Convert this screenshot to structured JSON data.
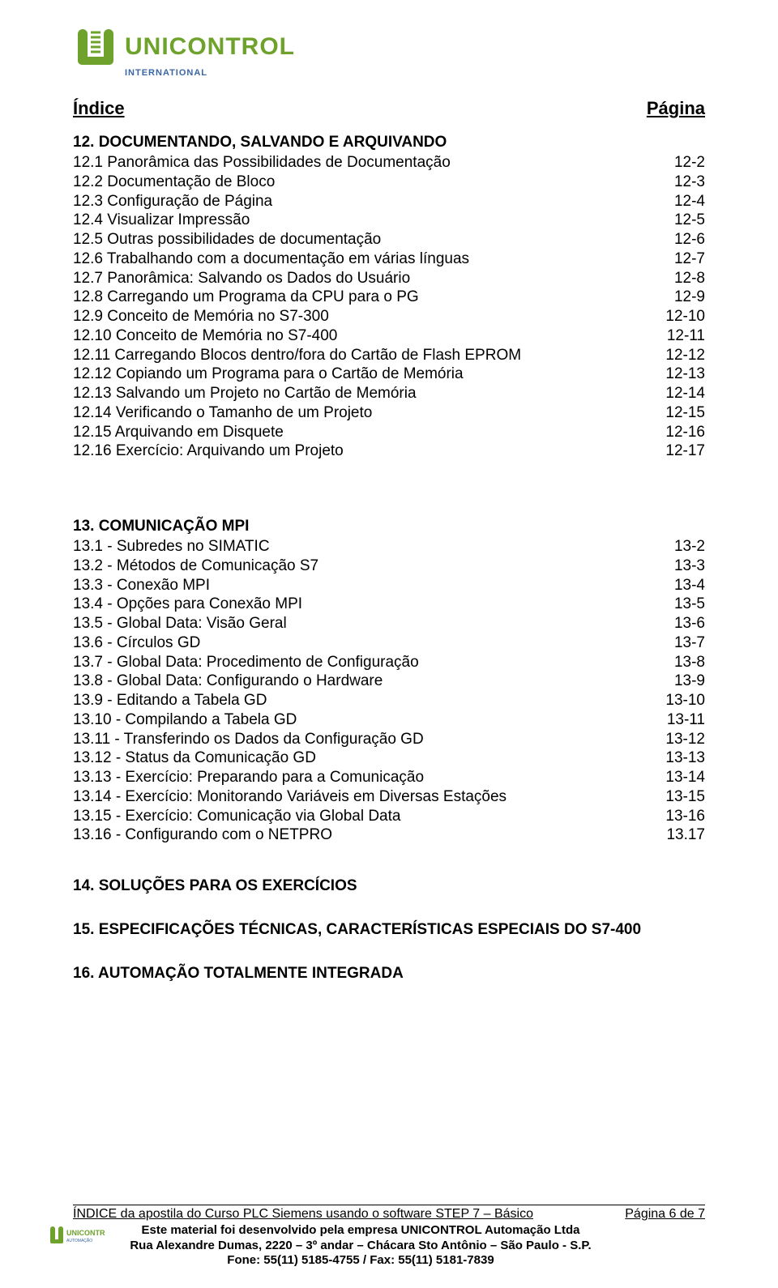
{
  "logo": {
    "brand": "UNICONTROL",
    "subtitle": "INTERNATIONAL",
    "brand_color": "#6ea22c",
    "sub_color": "#3a66a6"
  },
  "header": {
    "left": "Índice",
    "right": "Página"
  },
  "sections": [
    {
      "title": "12. DOCUMENTANDO, SALVANDO E ARQUIVANDO",
      "items": [
        {
          "label": "12.1 Panorâmica das Possibilidades de Documentação",
          "page": "12-2"
        },
        {
          "label": "12.2 Documentação de Bloco",
          "page": "12-3"
        },
        {
          "label": "12.3 Configuração de Página",
          "page": "12-4"
        },
        {
          "label": "12.4 Visualizar Impressão",
          "page": "12-5"
        },
        {
          "label": "12.5 Outras possibilidades de documentação",
          "page": "12-6"
        },
        {
          "label": "12.6 Trabalhando com a documentação em várias línguas",
          "page": "12-7"
        },
        {
          "label": "12.7 Panorâmica: Salvando os Dados do Usuário",
          "page": "12-8"
        },
        {
          "label": "12.8 Carregando um Programa da CPU para o PG",
          "page": "12-9"
        },
        {
          "label": "12.9 Conceito de Memória no S7-300",
          "page": "12-10"
        },
        {
          "label": "12.10 Conceito de Memória no S7-400",
          "page": "12-11"
        },
        {
          "label": "12.11 Carregando Blocos dentro/fora do Cartão de Flash EPROM",
          "page": "12-12"
        },
        {
          "label": "12.12 Copiando um Programa para o Cartão de Memória",
          "page": "12-13"
        },
        {
          "label": "12.13 Salvando um Projeto no Cartão de Memória",
          "page": "12-14"
        },
        {
          "label": "12.14 Verificando o Tamanho de um Projeto",
          "page": "12-15"
        },
        {
          "label": "12.15 Arquivando em Disquete",
          "page": "12-16"
        },
        {
          "label": "12.16 Exercício: Arquivando um Projeto",
          "page": "12-17"
        }
      ]
    },
    {
      "title": "13. COMUNICAÇÃO MPI",
      "items": [
        {
          "label": "13.1 - Subredes no SIMATIC",
          "page": "13-2"
        },
        {
          "label": "13.2 - Métodos de Comunicação S7",
          "page": "13-3"
        },
        {
          "label": "13.3 - Conexão MPI",
          "page": "13-4"
        },
        {
          "label": "13.4 - Opções para Conexão MPI",
          "page": "13-5"
        },
        {
          "label": "13.5 - Global Data: Visão Geral",
          "page": "13-6"
        },
        {
          "label": "13.6 - Círculos GD",
          "page": "13-7"
        },
        {
          "label": "13.7 - Global Data: Procedimento de Configuração",
          "page": "13-8"
        },
        {
          "label": "13.8 - Global Data: Configurando o Hardware",
          "page": "13-9"
        },
        {
          "label": "13.9 - Editando a Tabela GD",
          "page": "13-10"
        },
        {
          "label": "13.10 - Compilando a Tabela GD",
          "page": "13-11"
        },
        {
          "label": "13.11 - Transferindo os Dados da Configuração GD",
          "page": "13-12"
        },
        {
          "label": "13.12 - Status da Comunicação GD",
          "page": "13-13"
        },
        {
          "label": "13.13 - Exercício: Preparando para a Comunicação",
          "page": "13-14"
        },
        {
          "label": "13.14 - Exercício: Monitorando Variáveis em Diversas Estações",
          "page": "13-15"
        },
        {
          "label": "13.15 - Exercício: Comunicação via Global Data",
          "page": "13-16"
        },
        {
          "label": "13.16 - Configurando com o NETPRO",
          "page": "13.17"
        }
      ]
    }
  ],
  "standalone_titles": [
    "14. SOLUÇÕES PARA OS EXERCÍCIOS",
    "15. ESPECIFICAÇÕES TÉCNICAS, CARACTERÍSTICAS ESPECIAIS DO S7-400",
    "16. AUTOMAÇÃO TOTALMENTE INTEGRADA"
  ],
  "footer": {
    "line1_left": "ÍNDICE da apostila do Curso PLC Siemens  usando o software STEP 7 – Básico",
    "line1_right": "Página 6 de 7",
    "line2": "Este material foi desenvolvido pela empresa UNICONTROL Automação Ltda",
    "line3": "Rua Alexandre Dumas, 2220 – 3º andar – Chácara Sto Antônio – São Paulo - S.P.",
    "line4": "Fone: 55(11) 5185-4755 / Fax: 55(11) 5181-7839"
  }
}
